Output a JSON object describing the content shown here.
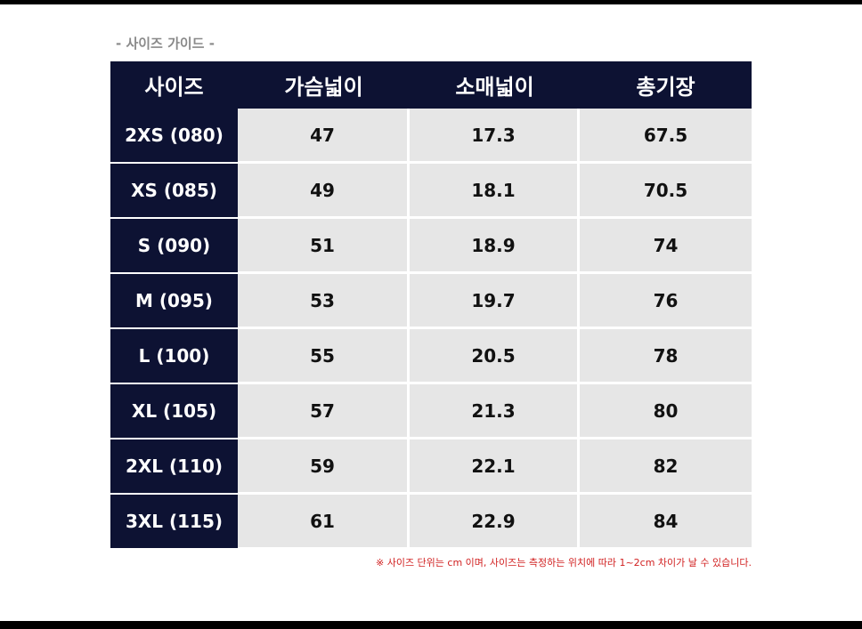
{
  "header": {
    "title": "- 사이즈 가이드 -"
  },
  "table": {
    "columns": [
      "사이즈",
      "가슴넓이",
      "소매넓이",
      "총기장"
    ],
    "rows": [
      [
        "2XS (080)",
        "47",
        "17.3",
        "67.5"
      ],
      [
        "XS (085)",
        "49",
        "18.1",
        "70.5"
      ],
      [
        "S (090)",
        "51",
        "18.9",
        "74"
      ],
      [
        "M (095)",
        "53",
        "19.7",
        "76"
      ],
      [
        "L (100)",
        "55",
        "20.5",
        "78"
      ],
      [
        "XL (105)",
        "57",
        "21.3",
        "80"
      ],
      [
        "2XL (110)",
        "59",
        "22.1",
        "82"
      ],
      [
        "3XL (115)",
        "61",
        "22.9",
        "84"
      ]
    ]
  },
  "note": "※ 사이즈 단위는 cm 이며, 사이즈는 측정하는 위치에 따라 1~2cm 차이가 날 수 있습니다."
}
